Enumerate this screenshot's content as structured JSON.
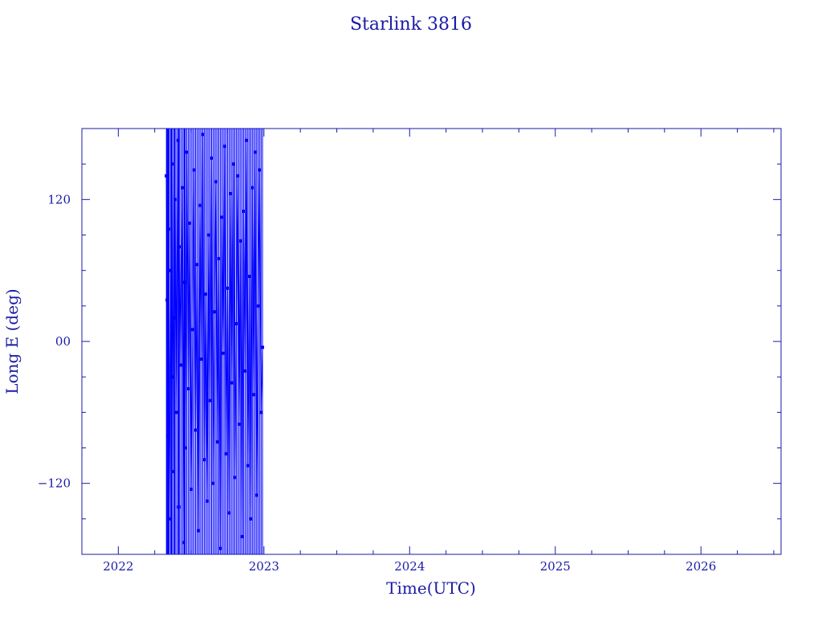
{
  "chart_data": {
    "type": "line",
    "title": "Starlink 3816",
    "xlabel": "Time(UTC)",
    "ylabel": "Long E (deg)",
    "x_tick_labels": [
      "2022",
      "2023",
      "2024",
      "2025",
      "2026"
    ],
    "y_tick_labels": [
      "120",
      "00",
      "-120"
    ],
    "y_ticks": [
      120,
      0,
      -120
    ],
    "xlim": [
      2021.75,
      2026.55
    ],
    "ylim": [
      -180,
      180
    ],
    "series": [
      {
        "x_range": [
          2022.33,
          2022.99
        ],
        "y_range": [
          -180,
          180
        ],
        "points": [
          [
            2022.33,
            140
          ],
          [
            2022.335,
            35
          ],
          [
            2022.34,
            -80
          ],
          [
            2022.345,
            95
          ],
          [
            2022.35,
            -150
          ],
          [
            2022.36,
            60
          ],
          [
            2022.365,
            -30
          ],
          [
            2022.37,
            150
          ],
          [
            2022.38,
            -110
          ],
          [
            2022.385,
            20
          ],
          [
            2022.39,
            120
          ],
          [
            2022.4,
            -60
          ],
          [
            2022.41,
            170
          ],
          [
            2022.415,
            -140
          ],
          [
            2022.42,
            80
          ],
          [
            2022.43,
            -20
          ],
          [
            2022.44,
            130
          ],
          [
            2022.45,
            -170
          ],
          [
            2022.455,
            50
          ],
          [
            2022.46,
            -90
          ],
          [
            2022.47,
            160
          ],
          [
            2022.48,
            -40
          ],
          [
            2022.49,
            100
          ],
          [
            2022.5,
            -125
          ],
          [
            2022.51,
            10
          ],
          [
            2022.52,
            145
          ],
          [
            2022.53,
            -75
          ],
          [
            2022.54,
            65
          ],
          [
            2022.55,
            -160
          ],
          [
            2022.56,
            115
          ],
          [
            2022.57,
            -15
          ],
          [
            2022.58,
            175
          ],
          [
            2022.59,
            -100
          ],
          [
            2022.6,
            40
          ],
          [
            2022.61,
            -135
          ],
          [
            2022.62,
            90
          ],
          [
            2022.63,
            -50
          ],
          [
            2022.64,
            155
          ],
          [
            2022.65,
            -120
          ],
          [
            2022.66,
            25
          ],
          [
            2022.67,
            135
          ],
          [
            2022.68,
            -85
          ],
          [
            2022.69,
            70
          ],
          [
            2022.7,
            -175
          ],
          [
            2022.71,
            105
          ],
          [
            2022.72,
            -10
          ],
          [
            2022.73,
            165
          ],
          [
            2022.74,
            -95
          ],
          [
            2022.75,
            45
          ],
          [
            2022.76,
            -145
          ],
          [
            2022.77,
            125
          ],
          [
            2022.78,
            -35
          ],
          [
            2022.79,
            150
          ],
          [
            2022.8,
            -115
          ],
          [
            2022.81,
            15
          ],
          [
            2022.82,
            140
          ],
          [
            2022.83,
            -70
          ],
          [
            2022.84,
            85
          ],
          [
            2022.85,
            -165
          ],
          [
            2022.86,
            110
          ],
          [
            2022.87,
            -25
          ],
          [
            2022.88,
            170
          ],
          [
            2022.89,
            -105
          ],
          [
            2022.9,
            55
          ],
          [
            2022.91,
            -150
          ],
          [
            2022.92,
            130
          ],
          [
            2022.93,
            -45
          ],
          [
            2022.94,
            160
          ],
          [
            2022.95,
            -130
          ],
          [
            2022.96,
            30
          ],
          [
            2022.97,
            145
          ],
          [
            2022.98,
            -60
          ],
          [
            2022.99,
            -5
          ]
        ]
      }
    ],
    "color": "#0000ff",
    "axis_color": "#1a1aa6",
    "grid": false
  }
}
